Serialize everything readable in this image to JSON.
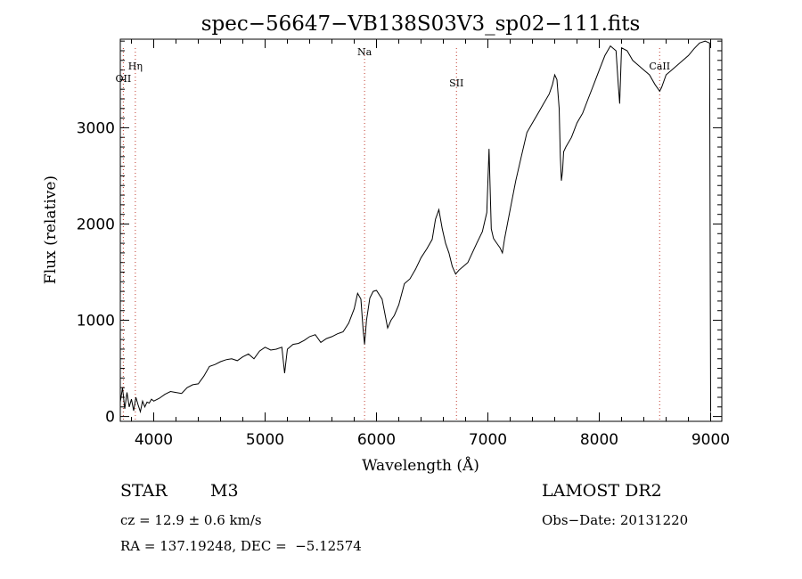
{
  "chart_data": {
    "type": "line",
    "title": "spec−56647−VB138S03V3_sp02−111.fits",
    "xlabel": "Wavelength (Å)",
    "ylabel": "Flux (relative)",
    "xlim": [
      3700,
      9100
    ],
    "ylim": [
      -50,
      3920
    ],
    "x_ticks": [
      4000,
      5000,
      6000,
      7000,
      8000,
      9000
    ],
    "y_ticks": [
      0,
      1000,
      2000,
      3000
    ],
    "grid": false,
    "spectral_lines": [
      {
        "name": "OII",
        "wavelength": 3727
      },
      {
        "name": "Hη",
        "wavelength": 3835
      },
      {
        "name": "Na",
        "wavelength": 5893
      },
      {
        "name": "SII",
        "wavelength": 6718
      },
      {
        "name": "CaII",
        "wavelength": 8542
      }
    ],
    "series": [
      {
        "x": [
          3700,
          3720,
          3740,
          3760,
          3780,
          3800,
          3820,
          3840,
          3860,
          3880,
          3900,
          3920,
          3940,
          3960,
          3980,
          4000,
          4050,
          4100,
          4150,
          4200,
          4250,
          4300,
          4350,
          4400,
          4450,
          4500,
          4550,
          4600,
          4650,
          4700,
          4750,
          4800,
          4850,
          4900,
          4950,
          5000,
          5050,
          5100,
          5150,
          5175,
          5200,
          5250,
          5300,
          5350,
          5400,
          5450,
          5500,
          5550,
          5600,
          5650,
          5700,
          5750,
          5800,
          5830,
          5860,
          5880,
          5893,
          5910,
          5940,
          5970,
          6000,
          6050,
          6100,
          6130,
          6160,
          6200,
          6250,
          6300,
          6350,
          6400,
          6450,
          6500,
          6530,
          6560,
          6590,
          6620,
          6650,
          6680,
          6710,
          6740,
          6780,
          6820,
          6860,
          6900,
          6950,
          6990,
          7010,
          7030,
          7050,
          7080,
          7110,
          7130,
          7150,
          7200,
          7250,
          7300,
          7350,
          7400,
          7450,
          7500,
          7550,
          7580,
          7600,
          7620,
          7640,
          7650,
          7660,
          7670,
          7680,
          7700,
          7750,
          7800,
          7850,
          7900,
          7950,
          8000,
          8050,
          8100,
          8150,
          8170,
          8183,
          8200,
          8250,
          8300,
          8350,
          8400,
          8450,
          8500,
          8542,
          8560,
          8600,
          8650,
          8700,
          8750,
          8800,
          8850,
          8900,
          8950,
          8990,
          9000
        ],
        "y": [
          150,
          300,
          80,
          250,
          100,
          180,
          60,
          200,
          120,
          50,
          160,
          100,
          150,
          140,
          180,
          160,
          190,
          230,
          260,
          250,
          240,
          300,
          330,
          340,
          420,
          520,
          540,
          570,
          590,
          600,
          580,
          620,
          650,
          600,
          680,
          720,
          690,
          700,
          720,
          450,
          700,
          750,
          760,
          790,
          830,
          850,
          770,
          810,
          830,
          860,
          880,
          970,
          1120,
          1280,
          1220,
          900,
          750,
          1000,
          1230,
          1300,
          1310,
          1220,
          920,
          1000,
          1050,
          1160,
          1380,
          1430,
          1530,
          1650,
          1740,
          1840,
          2050,
          2150,
          1950,
          1800,
          1700,
          1560,
          1480,
          1520,
          1560,
          1600,
          1700,
          1800,
          1920,
          2120,
          2780,
          1950,
          1850,
          1800,
          1750,
          1700,
          1850,
          2150,
          2450,
          2700,
          2950,
          3050,
          3150,
          3250,
          3350,
          3450,
          3550,
          3500,
          3200,
          2700,
          2450,
          2550,
          2750,
          2800,
          2900,
          3050,
          3150,
          3300,
          3450,
          3600,
          3750,
          3850,
          3800,
          3450,
          3250,
          3830,
          3800,
          3700,
          3650,
          3600,
          3550,
          3450,
          3380,
          3420,
          3550,
          3600,
          3650,
          3700,
          3750,
          3820,
          3880,
          3900,
          3880,
          50
        ]
      }
    ]
  },
  "info": {
    "object_class": "STAR",
    "subclass": "M3",
    "survey": "LAMOST DR2",
    "redshift": "cz = 12.9 ± 0.6 km/s",
    "obs_date": "Obs−Date: 20131220",
    "coords": "RA = 137.19248, DEC =  −5.12574"
  }
}
